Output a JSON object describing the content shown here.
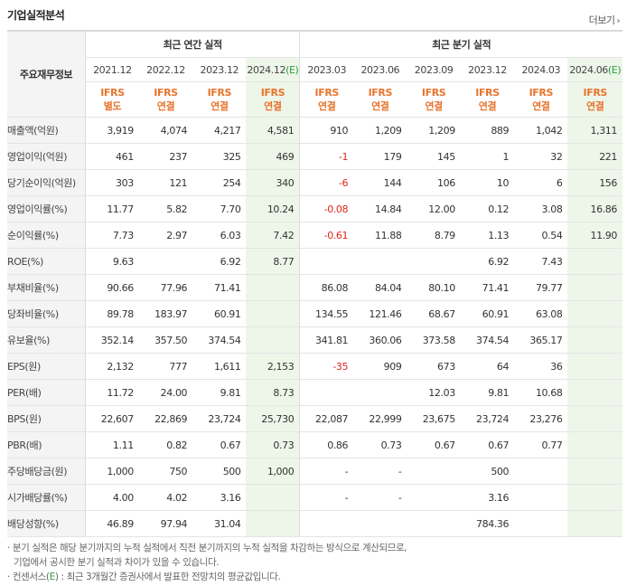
{
  "title": "기업실적분석",
  "more_label": "더보기",
  "header": {
    "row_label": "주요재무정보",
    "annual_group": "최근 연간 실적",
    "quarter_group": "최근 분기 실적",
    "periods": [
      "2021.12",
      "2022.12",
      "2023.12",
      "2024.12(E)",
      "2023.03",
      "2023.06",
      "2023.09",
      "2023.12",
      "2024.03",
      "2024.06(E)"
    ],
    "standards": [
      [
        "IFRS",
        "별도"
      ],
      [
        "IFRS",
        "연결"
      ],
      [
        "IFRS",
        "연결"
      ],
      [
        "IFRS",
        "연결"
      ],
      [
        "IFRS",
        "연결"
      ],
      [
        "IFRS",
        "연결"
      ],
      [
        "IFRS",
        "연결"
      ],
      [
        "IFRS",
        "연결"
      ],
      [
        "IFRS",
        "연결"
      ],
      [
        "IFRS",
        "연결"
      ]
    ]
  },
  "rows": [
    {
      "label": "매출액(억원)",
      "values": [
        "3,919",
        "4,074",
        "4,217",
        "4,581",
        "910",
        "1,209",
        "1,209",
        "889",
        "1,042",
        "1,311"
      ]
    },
    {
      "label": "영업이익(억원)",
      "values": [
        "461",
        "237",
        "325",
        "469",
        "-1",
        "179",
        "145",
        "1",
        "32",
        "221"
      ]
    },
    {
      "label": "당기순이익(억원)",
      "values": [
        "303",
        "121",
        "254",
        "340",
        "-6",
        "144",
        "106",
        "10",
        "6",
        "156"
      ]
    },
    {
      "label": "영업이익률(%)",
      "values": [
        "11.77",
        "5.82",
        "7.70",
        "10.24",
        "-0.08",
        "14.84",
        "12.00",
        "0.12",
        "3.08",
        "16.86"
      ]
    },
    {
      "label": "순이익률(%)",
      "values": [
        "7.73",
        "2.97",
        "6.03",
        "7.42",
        "-0.61",
        "11.88",
        "8.79",
        "1.13",
        "0.54",
        "11.90"
      ]
    },
    {
      "label": "ROE(%)",
      "values": [
        "9.63",
        "",
        "6.92",
        "8.77",
        "",
        "",
        "",
        "6.92",
        "7.43",
        ""
      ]
    },
    {
      "label": "부채비율(%)",
      "values": [
        "90.66",
        "77.96",
        "71.41",
        "",
        "86.08",
        "84.04",
        "80.10",
        "71.41",
        "79.77",
        ""
      ]
    },
    {
      "label": "당좌비율(%)",
      "values": [
        "89.78",
        "183.97",
        "60.91",
        "",
        "134.55",
        "121.46",
        "68.67",
        "60.91",
        "63.08",
        ""
      ]
    },
    {
      "label": "유보율(%)",
      "values": [
        "352.14",
        "357.50",
        "374.54",
        "",
        "341.81",
        "360.06",
        "373.58",
        "374.54",
        "365.17",
        ""
      ]
    },
    {
      "label": "EPS(원)",
      "values": [
        "2,132",
        "777",
        "1,611",
        "2,153",
        "-35",
        "909",
        "673",
        "64",
        "36",
        ""
      ]
    },
    {
      "label": "PER(배)",
      "values": [
        "11.72",
        "24.00",
        "9.81",
        "8.73",
        "",
        "",
        "12.03",
        "9.81",
        "10.68",
        ""
      ]
    },
    {
      "label": "BPS(원)",
      "values": [
        "22,607",
        "22,869",
        "23,724",
        "25,730",
        "22,087",
        "22,999",
        "23,675",
        "23,724",
        "23,276",
        ""
      ]
    },
    {
      "label": "PBR(배)",
      "values": [
        "1.11",
        "0.82",
        "0.67",
        "0.73",
        "0.86",
        "0.73",
        "0.67",
        "0.67",
        "0.77",
        ""
      ]
    },
    {
      "label": "주당배당금(원)",
      "values": [
        "1,000",
        "750",
        "500",
        "1,000",
        "-",
        "-",
        "",
        "500",
        "",
        ""
      ]
    },
    {
      "label": "시가배당률(%)",
      "values": [
        "4.00",
        "4.02",
        "3.16",
        "",
        "-",
        "-",
        "",
        "3.16",
        "",
        ""
      ]
    },
    {
      "label": "배당성향(%)",
      "values": [
        "46.89",
        "97.94",
        "31.04",
        "",
        "",
        "",
        "",
        "784.36",
        "",
        ""
      ]
    }
  ],
  "notes": {
    "line1": "· 분기 실적은 해당 분기까지의 누적 실적에서 직전 분기까지의 누적 실적을 차감하는 방식으로 계산되므로,",
    "line2": "기업에서 공시한 분기 실적과 차이가 있을 수 있습니다.",
    "line3_prefix": "· 컨센서스(",
    "line3_mark": "E",
    "line3_suffix": ") : 최근 3개월간 증권사에서 발표한 전망치의 평균값입니다."
  }
}
